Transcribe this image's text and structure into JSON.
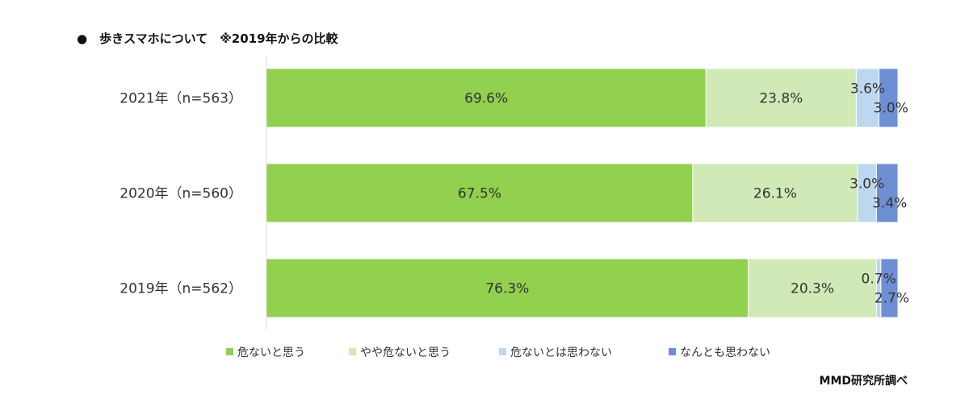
{
  "chart_data": {
    "type": "bar",
    "orientation": "horizontal",
    "stacked": true,
    "title": "●　歩きスマホについて　※2019年からの比較",
    "source": "MMD研究所調べ",
    "categories": [
      "2021年（n=563）",
      "2020年（n=560）",
      "2019年（n=562）"
    ],
    "series": [
      {
        "name": "危ないと思う",
        "color": "#92d050",
        "values": [
          69.6,
          67.5,
          76.3
        ],
        "labels": [
          "69.6%",
          "67.5%",
          "76.3%"
        ]
      },
      {
        "name": "やや危ないと思う",
        "color": "#d0e9b6",
        "values": [
          23.8,
          26.1,
          20.3
        ],
        "labels": [
          "23.8%",
          "26.1%",
          "20.3%"
        ]
      },
      {
        "name": "危ないとは思わない",
        "color": "#bdd7ee",
        "values": [
          3.6,
          3.0,
          0.7
        ],
        "labels": [
          "3.6%",
          "3.0%",
          "0.7%"
        ]
      },
      {
        "name": "なんとも思わない",
        "color": "#6f8fd4",
        "values": [
          3.0,
          3.4,
          2.7
        ],
        "labels": [
          "3.0%",
          "3.4%",
          "2.7%"
        ]
      }
    ],
    "xlim": [
      0,
      100
    ],
    "legend_position": "bottom",
    "grid": false
  }
}
